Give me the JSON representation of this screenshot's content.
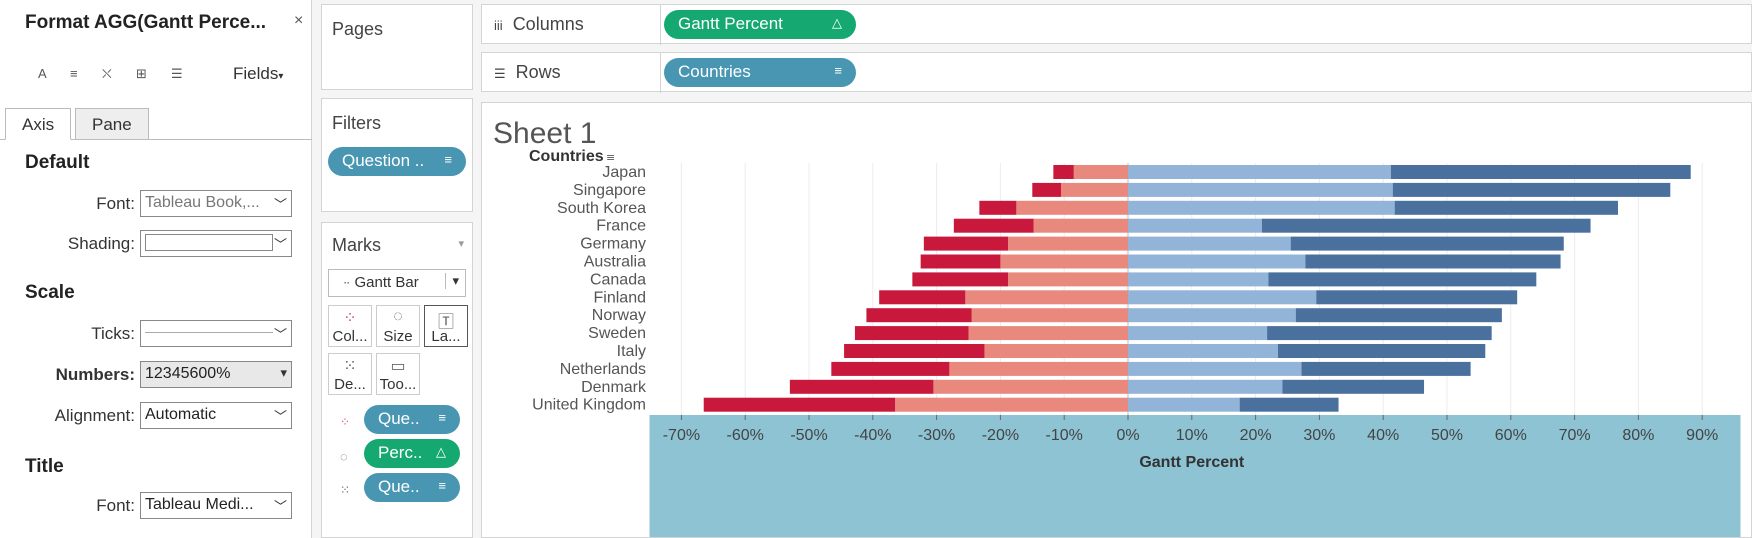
{
  "format_pane": {
    "title": "Format AGG(Gantt Perce...",
    "close_glyph": "×",
    "tools": [
      "A",
      "≡",
      "⛌",
      "⊞",
      "☰"
    ],
    "fields_label": "Fields",
    "tabs": [
      {
        "label": "Axis"
      },
      {
        "label": "Pane"
      }
    ],
    "sections": {
      "default": "Default",
      "scale": "Scale",
      "title": "Title"
    },
    "font_label": "Font:",
    "font_value": "Tableau Book,...",
    "shading_label": "Shading:",
    "ticks_label": "Ticks:",
    "numbers_label": "Numbers:",
    "numbers_value": "12345600%",
    "alignment_label": "Alignment:",
    "alignment_value": "Automatic",
    "title_font_label": "Font:",
    "title_font_value": "Tableau Medi..."
  },
  "pages": {
    "title": "Pages"
  },
  "filters": {
    "title": "Filters",
    "pill": "Question .."
  },
  "marks": {
    "title": "Marks",
    "mark_type": "Gantt Bar",
    "buttons": [
      {
        "label": "Col..."
      },
      {
        "label": "Size"
      },
      {
        "label": "La..."
      },
      {
        "label": "De..."
      },
      {
        "label": "Too..."
      }
    ],
    "pills": [
      {
        "label": "Que..",
        "color": "blue"
      },
      {
        "label": "Perc..",
        "color": "green"
      },
      {
        "label": "Que..",
        "color": "blue"
      }
    ]
  },
  "columns": {
    "label": "Columns",
    "pill": "Gantt Percent"
  },
  "rows": {
    "label": "Rows",
    "pill": "Countries"
  },
  "sheet": {
    "title": "Sheet 1"
  },
  "chart_data": {
    "type": "bar",
    "row_header": "Countries",
    "xlabel": "Gantt Percent",
    "xlim": [
      -75,
      96
    ],
    "x_ticks": [
      "-70%",
      "-60%",
      "-50%",
      "-40%",
      "-30%",
      "-20%",
      "-10%",
      "0%",
      "10%",
      "20%",
      "30%",
      "40%",
      "50%",
      "60%",
      "70%",
      "80%",
      "90%"
    ],
    "categories": [
      "Japan",
      "Singapore",
      "South Korea",
      "France",
      "Germany",
      "Australia",
      "Canada",
      "Finland",
      "Norway",
      "Sweden",
      "Italy",
      "Netherlands",
      "Denmark",
      "United Kingdom"
    ],
    "series": [
      {
        "color": "#c8193c",
        "values": [
          -3.2,
          -4.5,
          -5.8,
          -12.5,
          -13.2,
          -12.5,
          -15,
          -13.5,
          -16.5,
          -17.8,
          -22,
          -18.5,
          -22.5,
          -30
        ]
      },
      {
        "color": "#e9897e",
        "values": [
          -8.5,
          -10.5,
          -17.5,
          -14.8,
          -18.8,
          -20,
          -18.8,
          -25.5,
          -24.5,
          -25,
          -22.5,
          -28,
          -30.5,
          -36.5
        ]
      },
      {
        "color": "#92b4d8",
        "values": [
          41.2,
          41.5,
          41.8,
          21,
          25.5,
          27.8,
          22,
          29.5,
          26.3,
          21.8,
          23.5,
          27.2,
          24.2,
          17.5
        ]
      },
      {
        "color": "#4a709e",
        "values": [
          47,
          43.5,
          35,
          51.5,
          42.8,
          40,
          42,
          31.5,
          32.3,
          35.2,
          32.5,
          26.5,
          22.2,
          15.5
        ]
      }
    ],
    "grid": true
  }
}
